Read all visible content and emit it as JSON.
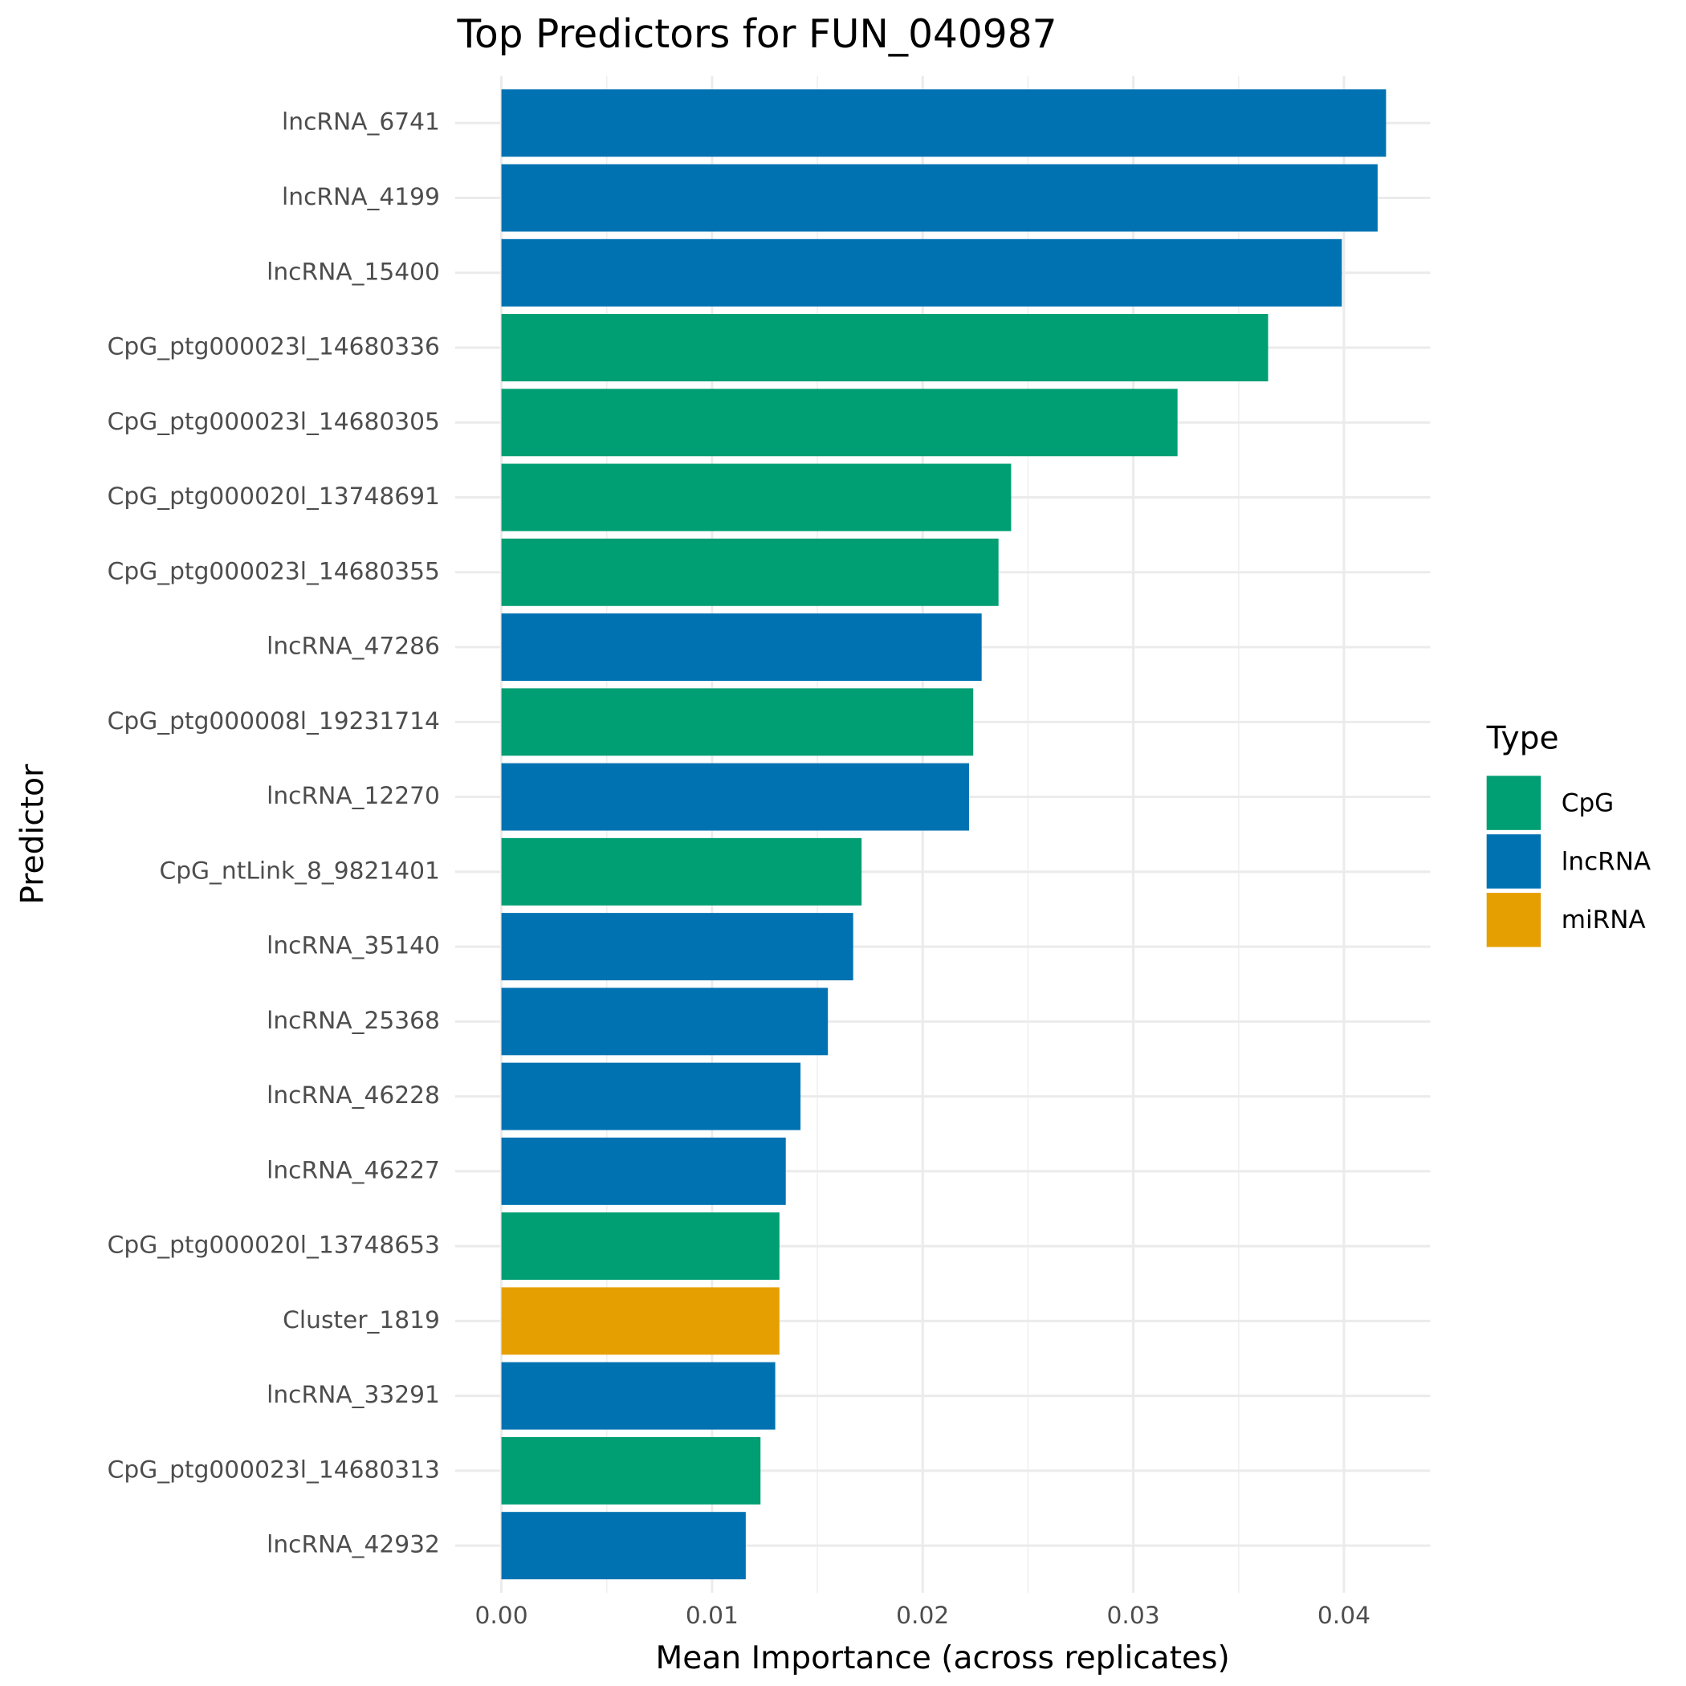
{
  "chart_data": {
    "type": "barh",
    "title": "Top Predictors for FUN_040987",
    "x_label": "Mean Importance (across replicates)",
    "y_label": "Predictor",
    "categories": [
      "lncRNA_6741",
      "lncRNA_4199",
      "lncRNA_15400",
      "CpG_ptg000023l_14680336",
      "CpG_ptg000023l_14680305",
      "CpG_ptg000020l_13748691",
      "CpG_ptg000023l_14680355",
      "lncRNA_47286",
      "CpG_ptg000008l_19231714",
      "lncRNA_12270",
      "CpG_ntLink_8_9821401",
      "lncRNA_35140",
      "lncRNA_25368",
      "lncRNA_46228",
      "lncRNA_46227",
      "CpG_ptg000020l_13748653",
      "Cluster_1819",
      "lncRNA_33291",
      "CpG_ptg000023l_14680313",
      "lncRNA_42932"
    ],
    "values": [
      0.042,
      0.0416,
      0.0399,
      0.0364,
      0.0321,
      0.0242,
      0.0236,
      0.0228,
      0.0224,
      0.0222,
      0.0171,
      0.0167,
      0.0155,
      0.0142,
      0.0135,
      0.0132,
      0.0132,
      0.013,
      0.0123,
      0.0116
    ],
    "groups": [
      "lncRNA",
      "lncRNA",
      "lncRNA",
      "CpG",
      "CpG",
      "CpG",
      "CpG",
      "lncRNA",
      "CpG",
      "lncRNA",
      "CpG",
      "lncRNA",
      "lncRNA",
      "lncRNA",
      "lncRNA",
      "CpG",
      "miRNA",
      "lncRNA",
      "CpG",
      "lncRNA"
    ],
    "legend_title": "Type",
    "legend": [
      {
        "name": "CpG",
        "color": "#009E73"
      },
      {
        "name": "lncRNA",
        "color": "#0072B2"
      },
      {
        "name": "miRNA",
        "color": "#E69F00"
      }
    ],
    "xlim": [
      -0.0022,
      0.0441
    ],
    "xticks": [
      {
        "value": 0,
        "label": "0.00"
      },
      {
        "value": 0.01,
        "label": "0.01"
      },
      {
        "value": 0.02,
        "label": "0.02"
      },
      {
        "value": 0.03,
        "label": "0.03"
      },
      {
        "value": 0.04,
        "label": "0.04"
      }
    ],
    "grid": true
  }
}
